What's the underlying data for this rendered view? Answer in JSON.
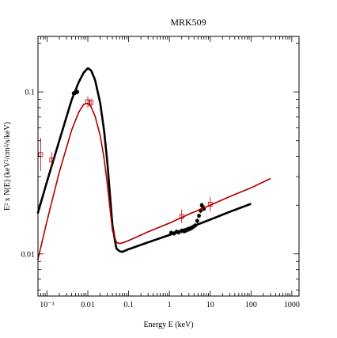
{
  "chart_data": {
    "type": "scatter",
    "title": "MRK509",
    "xlabel": "Energy E (keV)",
    "ylabel": "E² x N(E) (keV²/cm²/s/keV)",
    "xscale": "log",
    "yscale": "log",
    "xlim": [
      0.0006,
      1500
    ],
    "ylim": [
      0.0055,
      0.22
    ],
    "xticks": [
      {
        "value": 0.001,
        "label": "10⁻³"
      },
      {
        "value": 0.01,
        "label": "0.01"
      },
      {
        "value": 0.1,
        "label": "0.1"
      },
      {
        "value": 1,
        "label": "1"
      },
      {
        "value": 10,
        "label": "10"
      },
      {
        "value": 100,
        "label": "100"
      },
      {
        "value": 1000,
        "label": "1000"
      }
    ],
    "yticks": [
      {
        "value": 0.01,
        "label": "0.01"
      },
      {
        "value": 0.1,
        "label": "0.1"
      }
    ],
    "grid": false,
    "series": [
      {
        "color": "#000000",
        "style": "line",
        "x": [
          0.0006,
          0.001,
          0.002,
          0.004,
          0.006,
          0.008,
          0.01,
          0.012,
          0.015,
          0.02,
          0.025,
          0.03,
          0.035,
          0.04,
          0.05,
          0.06,
          0.07,
          0.1,
          0.3,
          1,
          3,
          10,
          30,
          100
        ],
        "y": [
          0.018,
          0.028,
          0.05,
          0.089,
          0.115,
          0.132,
          0.14,
          0.136,
          0.119,
          0.086,
          0.058,
          0.037,
          0.023,
          0.015,
          0.0108,
          0.0104,
          0.0103,
          0.0107,
          0.0118,
          0.0131,
          0.0145,
          0.0163,
          0.0182,
          0.0204
        ]
      },
      {
        "color": "#000000",
        "style": "points",
        "x": [
          0.0045,
          0.005,
          0.0055,
          1.1,
          1.3,
          1.5,
          1.7,
          2.0,
          2.3,
          2.6,
          3.0,
          3.4,
          3.8,
          4.3,
          4.8,
          5.3,
          5.8,
          6.2,
          6.6,
          7.0
        ],
        "y": [
          0.098,
          0.099,
          0.1,
          0.0135,
          0.0134,
          0.0137,
          0.0136,
          0.0139,
          0.0138,
          0.014,
          0.0142,
          0.0144,
          0.0147,
          0.015,
          0.016,
          0.0172,
          0.0185,
          0.02,
          0.0195,
          0.019
        ]
      },
      {
        "color": "#b20000",
        "style": "line",
        "x": [
          0.0006,
          0.001,
          0.002,
          0.004,
          0.006,
          0.008,
          0.01,
          0.012,
          0.015,
          0.02,
          0.025,
          0.03,
          0.035,
          0.04,
          0.05,
          0.06,
          0.07,
          0.1,
          0.3,
          1,
          3,
          10,
          30,
          100,
          300
        ],
        "y": [
          0.0093,
          0.016,
          0.032,
          0.058,
          0.075,
          0.084,
          0.085,
          0.081,
          0.071,
          0.054,
          0.039,
          0.027,
          0.019,
          0.014,
          0.0118,
          0.0116,
          0.0117,
          0.0121,
          0.0137,
          0.0155,
          0.0176,
          0.02,
          0.0226,
          0.0256,
          0.0292
        ]
      },
      {
        "color": "#b20000",
        "style": "errorbars",
        "x": [
          0.0007,
          0.0013,
          0.01,
          0.012,
          2.0,
          10
        ],
        "y": [
          0.041,
          0.038,
          0.087,
          0.086,
          0.017,
          0.0203
        ],
        "yerr_lo": [
          0.0325,
          0.0335,
          0.08,
          0.081,
          0.0155,
          0.0183
        ],
        "yerr_hi": [
          0.052,
          0.0425,
          0.094,
          0.091,
          0.0188,
          0.0225
        ]
      }
    ]
  }
}
